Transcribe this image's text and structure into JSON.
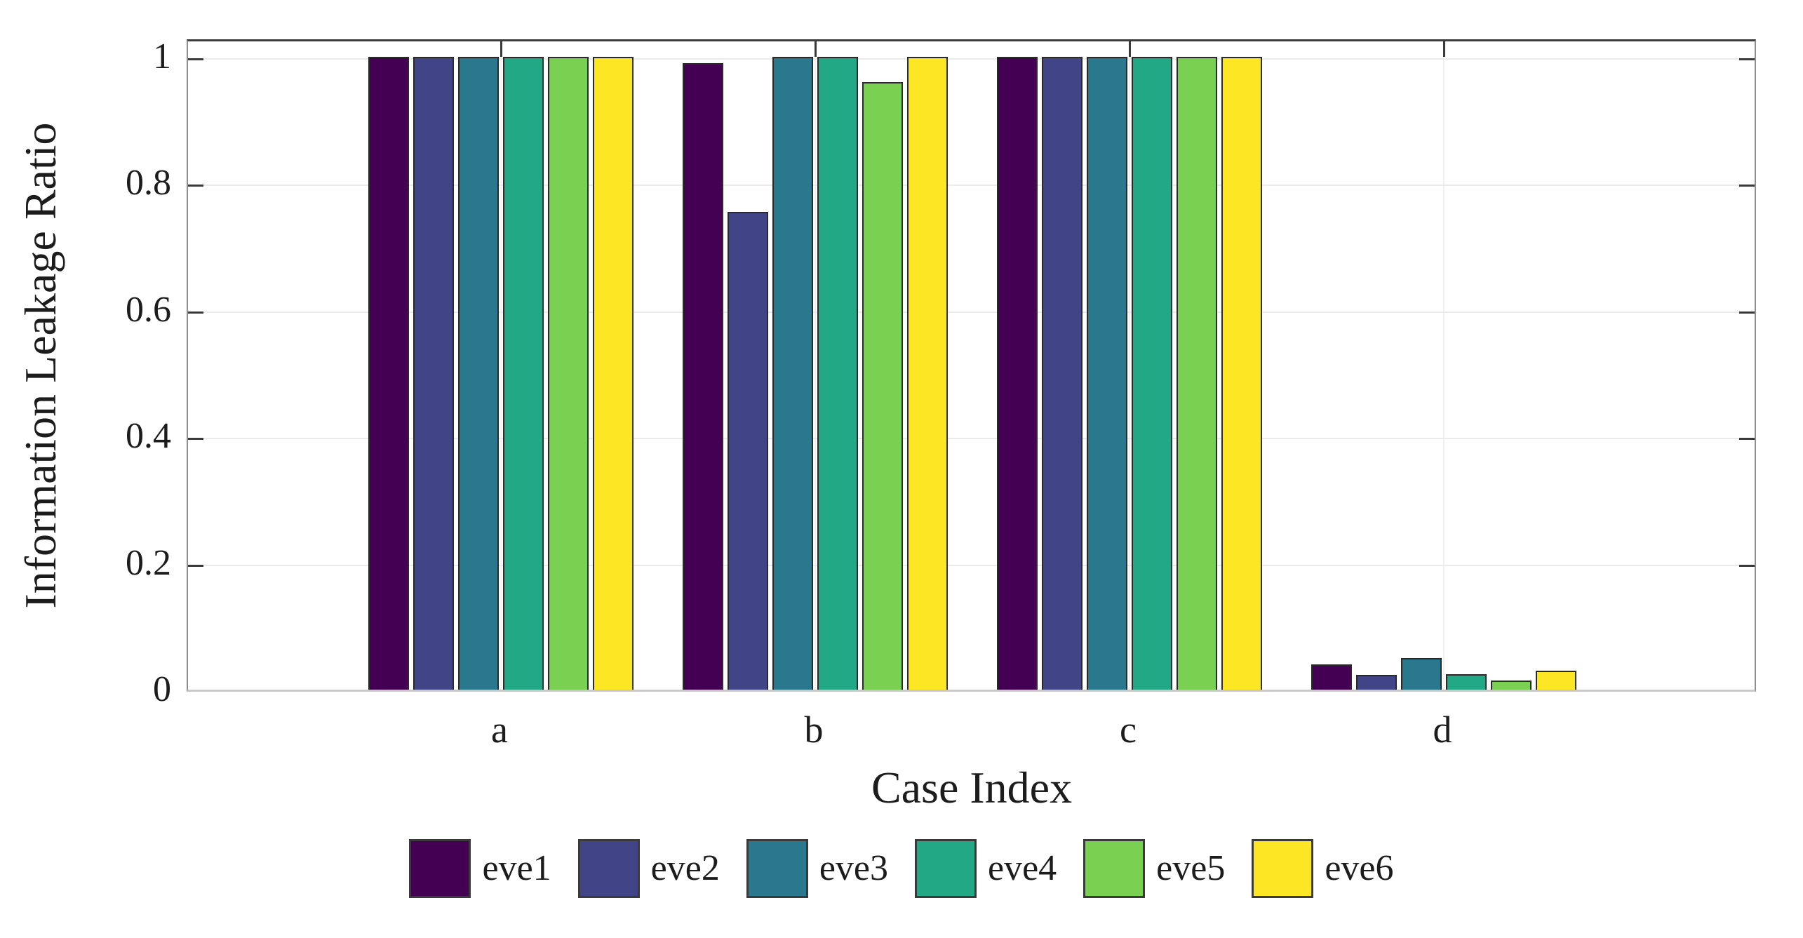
{
  "chart_data": {
    "type": "bar",
    "title": "",
    "xlabel": "Case Index",
    "ylabel": "Information Leakage Ratio",
    "categories": [
      "a",
      "b",
      "c",
      "d"
    ],
    "series": [
      {
        "name": "eve1",
        "color": "#440154",
        "values": [
          1.0,
          0.99,
          1.0,
          0.04
        ]
      },
      {
        "name": "eve2",
        "color": "#414487",
        "values": [
          1.0,
          0.755,
          1.0,
          0.023
        ]
      },
      {
        "name": "eve3",
        "color": "#2a788e",
        "values": [
          1.0,
          1.0,
          1.0,
          0.05
        ]
      },
      {
        "name": "eve4",
        "color": "#22a884",
        "values": [
          1.0,
          1.0,
          1.0,
          0.024
        ]
      },
      {
        "name": "eve5",
        "color": "#7ad151",
        "values": [
          1.0,
          0.96,
          1.0,
          0.014
        ]
      },
      {
        "name": "eve6",
        "color": "#fde725",
        "values": [
          1.0,
          1.0,
          1.0,
          0.03
        ]
      }
    ],
    "yticks": [
      0,
      0.2,
      0.4,
      0.6,
      0.8,
      1
    ],
    "ylim": [
      0,
      1.03
    ],
    "xlim": [
      0,
      5
    ],
    "grid": true,
    "legend_position": "bottom",
    "bar_edge_color": "#2a2a2a"
  }
}
